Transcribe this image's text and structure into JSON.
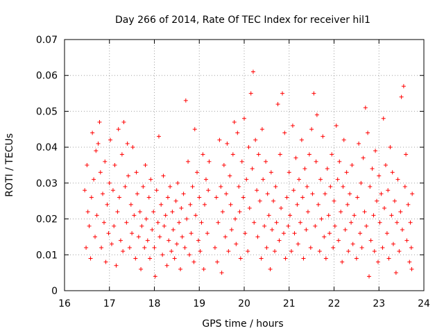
{
  "chart_data": {
    "type": "scatter",
    "title": "Day 266 of 2014, Rate Of TEC Index for receiver hil1",
    "xlabel": "GPS time / hours",
    "ylabel": "ROTI / TECUs",
    "xlim": [
      16,
      24
    ],
    "ylim": [
      0,
      0.07
    ],
    "xticks": [
      "16",
      "17",
      "18",
      "19",
      "20",
      "21",
      "22",
      "23",
      "24"
    ],
    "yticks": [
      "0",
      "0.01",
      "0.02",
      "0.03",
      "0.04",
      "0.05",
      "0.06",
      "0.07"
    ],
    "grid": true,
    "marker": "+",
    "color": "#ff0000",
    "series": [
      {
        "name": "ROTI",
        "points": [
          [
            16.45,
            0.028
          ],
          [
            16.48,
            0.012
          ],
          [
            16.5,
            0.035
          ],
          [
            16.52,
            0.022
          ],
          [
            16.55,
            0.018
          ],
          [
            16.58,
            0.009
          ],
          [
            16.6,
            0.026
          ],
          [
            16.62,
            0.044
          ],
          [
            16.65,
            0.031
          ],
          [
            16.68,
            0.015
          ],
          [
            16.7,
            0.039
          ],
          [
            16.72,
            0.021
          ],
          [
            16.75,
            0.041
          ],
          [
            16.78,
            0.047
          ],
          [
            16.8,
            0.033
          ],
          [
            16.82,
            0.012
          ],
          [
            16.85,
            0.027
          ],
          [
            16.88,
            0.019
          ],
          [
            16.9,
            0.036
          ],
          [
            16.92,
            0.008
          ],
          [
            16.95,
            0.024
          ],
          [
            16.98,
            0.016
          ],
          [
            17.0,
            0.03
          ],
          [
            17.02,
            0.042
          ],
          [
            17.05,
            0.013
          ],
          [
            17.08,
            0.028
          ],
          [
            17.1,
            0.018
          ],
          [
            17.12,
            0.035
          ],
          [
            17.15,
            0.007
          ],
          [
            17.18,
            0.022
          ],
          [
            17.2,
            0.045
          ],
          [
            17.22,
            0.026
          ],
          [
            17.25,
            0.014
          ],
          [
            17.28,
            0.038
          ],
          [
            17.3,
            0.011
          ],
          [
            17.32,
            0.047
          ],
          [
            17.35,
            0.029
          ],
          [
            17.38,
            0.019
          ],
          [
            17.4,
            0.041
          ],
          [
            17.42,
            0.032
          ],
          [
            17.45,
            0.012
          ],
          [
            17.48,
            0.024
          ],
          [
            17.5,
            0.016
          ],
          [
            17.52,
            0.04
          ],
          [
            17.55,
            0.021
          ],
          [
            17.58,
            0.009
          ],
          [
            17.6,
            0.033
          ],
          [
            17.62,
            0.027
          ],
          [
            17.65,
            0.015
          ],
          [
            17.68,
            0.022
          ],
          [
            17.7,
            0.006
          ],
          [
            17.72,
            0.018
          ],
          [
            17.75,
            0.029
          ],
          [
            17.78,
            0.012
          ],
          [
            17.8,
            0.035
          ],
          [
            17.82,
            0.02
          ],
          [
            17.85,
            0.014
          ],
          [
            17.88,
            0.026
          ],
          [
            17.9,
            0.009
          ],
          [
            17.92,
            0.031
          ],
          [
            17.95,
            0.017
          ],
          [
            17.98,
            0.022
          ],
          [
            18.0,
            0.012
          ],
          [
            18.02,
            0.004
          ],
          [
            18.05,
            0.028
          ],
          [
            18.08,
            0.019
          ],
          [
            18.1,
            0.043
          ],
          [
            18.12,
            0.015
          ],
          [
            18.15,
            0.024
          ],
          [
            18.18,
            0.01
          ],
          [
            18.2,
            0.032
          ],
          [
            18.22,
            0.018
          ],
          [
            18.25,
            0.021
          ],
          [
            18.28,
            0.007
          ],
          [
            18.3,
            0.026
          ],
          [
            18.32,
            0.014
          ],
          [
            18.35,
            0.029
          ],
          [
            18.38,
            0.011
          ],
          [
            18.4,
            0.022
          ],
          [
            18.42,
            0.017
          ],
          [
            18.45,
            0.009
          ],
          [
            18.48,
            0.025
          ],
          [
            18.5,
            0.013
          ],
          [
            18.52,
            0.03
          ],
          [
            18.55,
            0.019
          ],
          [
            18.58,
            0.006
          ],
          [
            18.6,
            0.023
          ],
          [
            18.62,
            0.015
          ],
          [
            18.65,
            0.027
          ],
          [
            18.68,
            0.012
          ],
          [
            18.7,
            0.053
          ],
          [
            18.72,
            0.02
          ],
          [
            18.75,
            0.036
          ],
          [
            18.78,
            0.01
          ],
          [
            18.8,
            0.024
          ],
          [
            18.82,
            0.016
          ],
          [
            18.85,
            0.029
          ],
          [
            18.88,
            0.008
          ],
          [
            18.9,
            0.045
          ],
          [
            18.92,
            0.021
          ],
          [
            18.95,
            0.033
          ],
          [
            18.98,
            0.014
          ],
          [
            19.0,
            0.026
          ],
          [
            19.02,
            0.011
          ],
          [
            19.05,
            0.019
          ],
          [
            19.08,
            0.038
          ],
          [
            19.1,
            0.006
          ],
          [
            19.12,
            0.024
          ],
          [
            19.15,
            0.031
          ],
          [
            19.18,
            0.016
          ],
          [
            19.2,
            0.028
          ],
          [
            19.22,
            0.036
          ],
          [
            19.35,
            0.012
          ],
          [
            19.38,
            0.026
          ],
          [
            19.4,
            0.008
          ],
          [
            19.42,
            0.019
          ],
          [
            19.45,
            0.042
          ],
          [
            19.48,
            0.029
          ],
          [
            19.5,
            0.005
          ],
          [
            19.52,
            0.022
          ],
          [
            19.55,
            0.035
          ],
          [
            19.58,
            0.015
          ],
          [
            19.6,
            0.027
          ],
          [
            19.62,
            0.041
          ],
          [
            19.65,
            0.011
          ],
          [
            19.68,
            0.032
          ],
          [
            19.7,
            0.024
          ],
          [
            19.72,
            0.017
          ],
          [
            19.75,
            0.038
          ],
          [
            19.78,
            0.047
          ],
          [
            19.8,
            0.02
          ],
          [
            19.82,
            0.013
          ],
          [
            19.85,
            0.044
          ],
          [
            19.88,
            0.029
          ],
          [
            19.9,
            0.022
          ],
          [
            19.92,
            0.009
          ],
          [
            19.95,
            0.036
          ],
          [
            19.98,
            0.026
          ],
          [
            20.0,
            0.048
          ],
          [
            20.02,
            0.016
          ],
          [
            20.05,
            0.031
          ],
          [
            20.08,
            0.011
          ],
          [
            20.1,
            0.04
          ],
          [
            20.12,
            0.023
          ],
          [
            20.15,
            0.055
          ],
          [
            20.18,
            0.034
          ],
          [
            20.2,
            0.061
          ],
          [
            20.22,
            0.019
          ],
          [
            20.25,
            0.042
          ],
          [
            20.28,
            0.028
          ],
          [
            20.3,
            0.015
          ],
          [
            20.32,
            0.038
          ],
          [
            20.35,
            0.025
          ],
          [
            20.38,
            0.009
          ],
          [
            20.4,
            0.045
          ],
          [
            20.42,
            0.031
          ],
          [
            20.45,
            0.018
          ],
          [
            20.48,
            0.036
          ],
          [
            20.5,
            0.012
          ],
          [
            20.52,
            0.027
          ],
          [
            20.55,
            0.021
          ],
          [
            20.58,
            0.006
          ],
          [
            20.6,
            0.033
          ],
          [
            20.62,
            0.017
          ],
          [
            20.65,
            0.025
          ],
          [
            20.68,
            0.011
          ],
          [
            20.7,
            0.029
          ],
          [
            20.72,
            0.019
          ],
          [
            20.75,
            0.052
          ],
          [
            20.78,
            0.014
          ],
          [
            20.8,
            0.038
          ],
          [
            20.82,
            0.023
          ],
          [
            20.85,
            0.055
          ],
          [
            20.88,
            0.016
          ],
          [
            20.9,
            0.044
          ],
          [
            20.92,
            0.009
          ],
          [
            20.95,
            0.026
          ],
          [
            20.98,
            0.018
          ],
          [
            21.0,
            0.033
          ],
          [
            21.02,
            0.021
          ],
          [
            21.05,
            0.011
          ],
          [
            21.08,
            0.046
          ],
          [
            21.1,
            0.028
          ],
          [
            21.12,
            0.016
          ],
          [
            21.15,
            0.037
          ],
          [
            21.18,
            0.024
          ],
          [
            21.2,
            0.013
          ],
          [
            21.22,
            0.031
          ],
          [
            21.25,
            0.019
          ],
          [
            21.28,
            0.042
          ],
          [
            21.3,
            0.026
          ],
          [
            21.32,
            0.009
          ],
          [
            21.35,
            0.034
          ],
          [
            21.38,
            0.017
          ],
          [
            21.4,
            0.029
          ],
          [
            21.42,
            0.022
          ],
          [
            21.45,
            0.038
          ],
          [
            21.48,
            0.012
          ],
          [
            21.5,
            0.045
          ],
          [
            21.52,
            0.027
          ],
          [
            21.55,
            0.055
          ],
          [
            21.58,
            0.018
          ],
          [
            21.6,
            0.036
          ],
          [
            21.62,
            0.049
          ],
          [
            21.65,
            0.024
          ],
          [
            21.68,
            0.011
          ],
          [
            21.7,
            0.031
          ],
          [
            21.72,
            0.02
          ],
          [
            21.75,
            0.043
          ],
          [
            21.78,
            0.015
          ],
          [
            21.8,
            0.027
          ],
          [
            21.82,
            0.009
          ],
          [
            21.85,
            0.034
          ],
          [
            21.88,
            0.021
          ],
          [
            21.9,
            0.016
          ],
          [
            21.92,
            0.029
          ],
          [
            21.95,
            0.038
          ],
          [
            21.98,
            0.012
          ],
          [
            22.0,
            0.025
          ],
          [
            22.02,
            0.018
          ],
          [
            22.05,
            0.046
          ],
          [
            22.08,
            0.031
          ],
          [
            22.1,
            0.014
          ],
          [
            22.12,
            0.036
          ],
          [
            22.15,
            0.022
          ],
          [
            22.18,
            0.008
          ],
          [
            22.2,
            0.029
          ],
          [
            22.22,
            0.042
          ],
          [
            22.25,
            0.017
          ],
          [
            22.28,
            0.033
          ],
          [
            22.3,
            0.024
          ],
          [
            22.32,
            0.011
          ],
          [
            22.35,
            0.027
          ],
          [
            22.38,
            0.019
          ],
          [
            22.4,
            0.035
          ],
          [
            22.42,
            0.013
          ],
          [
            22.45,
            0.021
          ],
          [
            22.5,
            0.009
          ],
          [
            22.52,
            0.026
          ],
          [
            22.55,
            0.041
          ],
          [
            22.58,
            0.016
          ],
          [
            22.6,
            0.03
          ],
          [
            22.62,
            0.012
          ],
          [
            22.65,
            0.037
          ],
          [
            22.68,
            0.022
          ],
          [
            22.7,
            0.051
          ],
          [
            22.72,
            0.018
          ],
          [
            22.75,
            0.044
          ],
          [
            22.78,
            0.004
          ],
          [
            22.8,
            0.029
          ],
          [
            22.82,
            0.014
          ],
          [
            22.85,
            0.034
          ],
          [
            22.88,
            0.021
          ],
          [
            22.9,
            0.011
          ],
          [
            22.92,
            0.039
          ],
          [
            22.95,
            0.025
          ],
          [
            22.98,
            0.008
          ],
          [
            23.0,
            0.032
          ],
          [
            23.02,
            0.019
          ],
          [
            23.05,
            0.027
          ],
          [
            23.08,
            0.012
          ],
          [
            23.1,
            0.048
          ],
          [
            23.12,
            0.023
          ],
          [
            23.15,
            0.035
          ],
          [
            23.18,
            0.016
          ],
          [
            23.2,
            0.028
          ],
          [
            23.22,
            0.009
          ],
          [
            23.25,
            0.04
          ],
          [
            23.28,
            0.021
          ],
          [
            23.3,
            0.033
          ],
          [
            23.32,
            0.013
          ],
          [
            23.35,
            0.025
          ],
          [
            23.38,
            0.005
          ],
          [
            23.4,
            0.019
          ],
          [
            23.42,
            0.031
          ],
          [
            23.45,
            0.011
          ],
          [
            23.48,
            0.022
          ],
          [
            23.5,
            0.054
          ],
          [
            23.52,
            0.017
          ],
          [
            23.55,
            0.057
          ],
          [
            23.58,
            0.029
          ],
          [
            23.6,
            0.038
          ],
          [
            23.62,
            0.014
          ],
          [
            23.65,
            0.024
          ],
          [
            23.68,
            0.008
          ],
          [
            23.7,
            0.019
          ],
          [
            23.72,
            0.012
          ],
          [
            23.74,
            0.027
          ],
          [
            23.73,
            0.006
          ]
        ]
      }
    ]
  }
}
